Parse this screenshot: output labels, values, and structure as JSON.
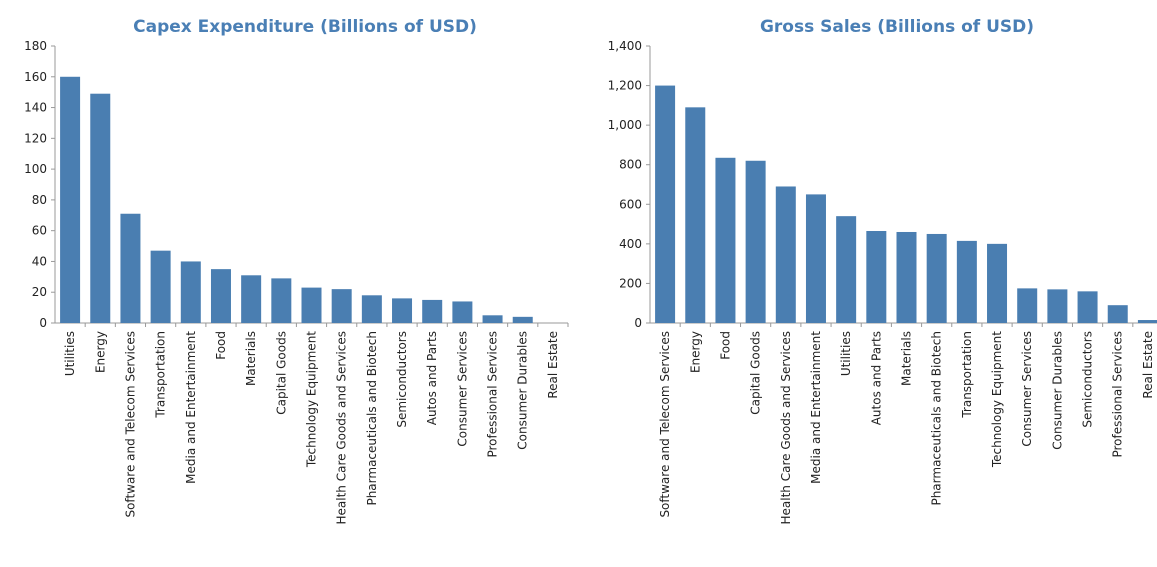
{
  "chart_data": [
    {
      "type": "bar",
      "title": "Capex Expenditure (Billions of USD)",
      "categories": [
        "Utilities",
        "Energy",
        "Software and Telecom Services",
        "Transportation",
        "Media and Entertainment",
        "Food",
        "Materials",
        "Capital Goods",
        "Technology Equipment",
        "Health Care Goods and Services",
        "Pharmaceuticals and Biotech",
        "Semiconductors",
        "Autos and Parts",
        "Consumer Services",
        "Professional Services",
        "Consumer Durables",
        "Real Estate"
      ],
      "values": [
        160,
        149,
        71,
        47,
        40,
        35,
        31,
        29,
        23,
        22,
        18,
        16,
        15,
        14,
        5,
        4,
        0
      ],
      "color": "#4a7eb1",
      "ylim": [
        0,
        180
      ],
      "yticks": [
        0,
        20,
        40,
        60,
        80,
        100,
        120,
        140,
        160,
        180
      ],
      "grid": false
    },
    {
      "type": "bar",
      "title": "Gross Sales (Billions of USD)",
      "categories": [
        "Software and Telecom Services",
        "Energy",
        "Food",
        "Capital Goods",
        "Health Care Goods and Services",
        "Media and Entertainment",
        "Utilities",
        "Autos and Parts",
        "Materials",
        "Pharmaceuticals and Biotech",
        "Transportation",
        "Technology Equipment",
        "Consumer Services",
        "Consumer Durables",
        "Semiconductors",
        "Professional Services",
        "Real Estate"
      ],
      "values": [
        1200,
        1090,
        835,
        820,
        690,
        650,
        540,
        465,
        460,
        450,
        415,
        400,
        175,
        170,
        160,
        90,
        15
      ],
      "color": "#4a7eb1",
      "ylim": [
        0,
        1400
      ],
      "yticks": [
        0,
        200,
        400,
        600,
        800,
        {
          "value": 1000,
          "label": "1,000"
        },
        {
          "value": 1200,
          "label": "1,200"
        },
        {
          "value": 1400,
          "label": "1,400"
        }
      ],
      "grid": false
    }
  ]
}
